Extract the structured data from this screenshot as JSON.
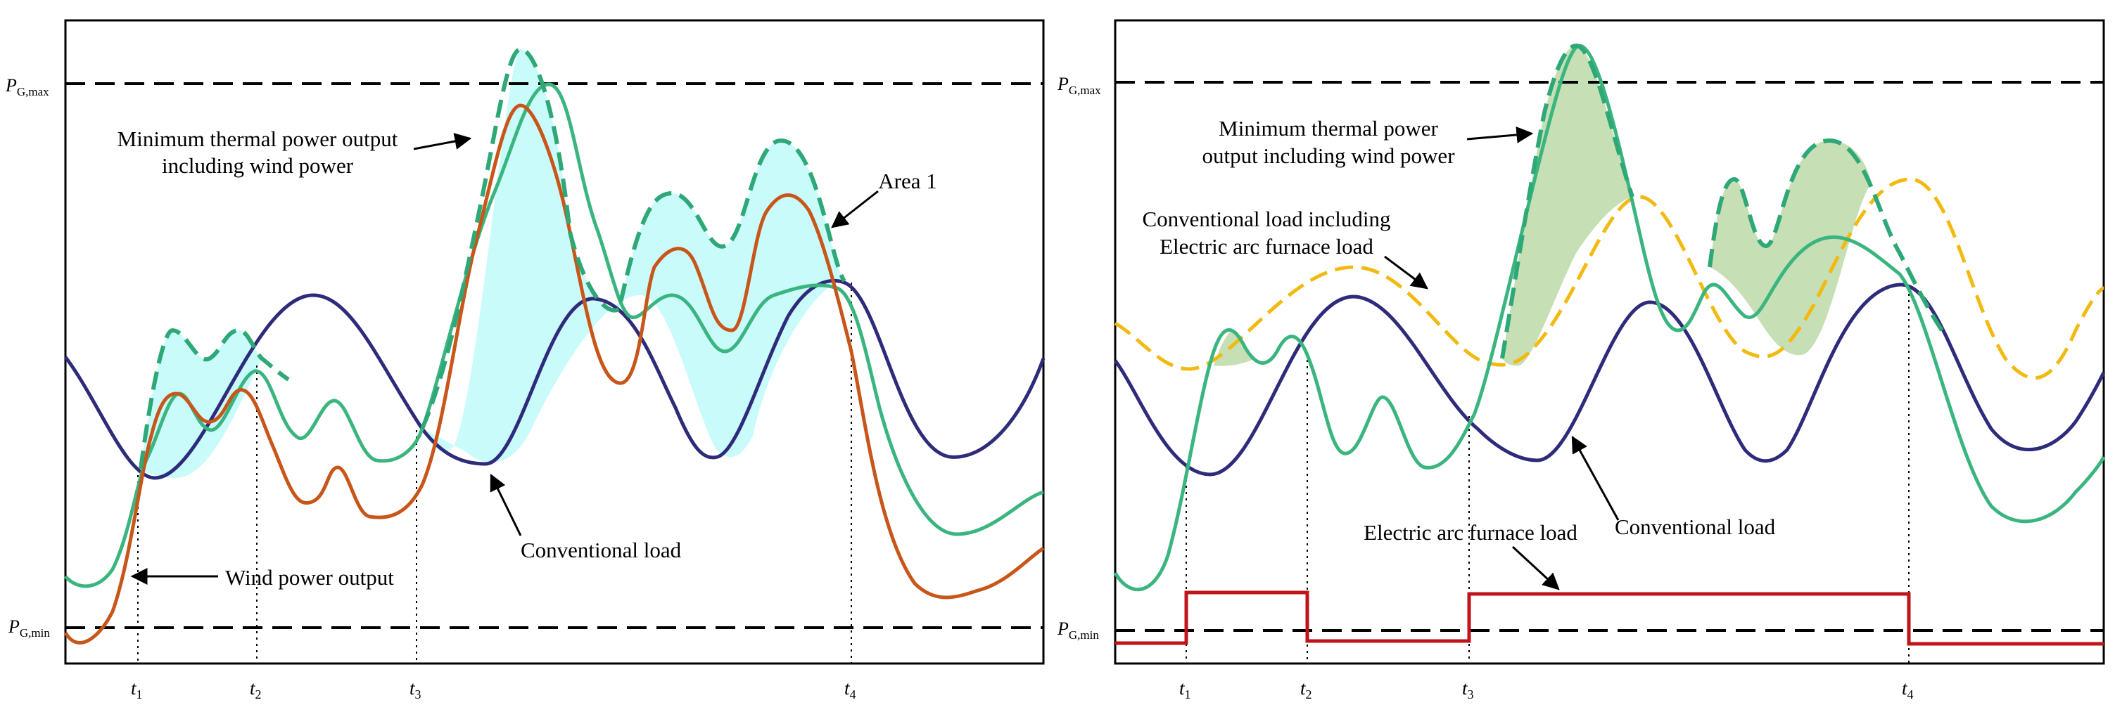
{
  "left_panel": {
    "pmax_label": {
      "main": "P",
      "sub": "G,max"
    },
    "pmin_label": {
      "main": "P",
      "sub": "G,min"
    },
    "annotations": {
      "min_thermal_line1": "Minimum thermal power output",
      "min_thermal_line2": "including wind power",
      "area1": "Area 1",
      "wind_output": "Wind power output",
      "conventional_load": "Conventional load"
    },
    "ticks": [
      {
        "main": "t",
        "sub": "1"
      },
      {
        "main": "t",
        "sub": "2"
      },
      {
        "main": "t",
        "sub": "3"
      },
      {
        "main": "t",
        "sub": "4"
      }
    ]
  },
  "right_panel": {
    "pmax_label": {
      "main": "P",
      "sub": "G,max"
    },
    "pmin_label": {
      "main": "P",
      "sub": "G,min"
    },
    "annotations": {
      "min_thermal_line1": "Minimum thermal power",
      "min_thermal_line2": "output including wind power",
      "conv_eaf_line1": "Conventional load including",
      "conv_eaf_line2": "Electric arc furnace load",
      "eaf_load": "Electric arc furnace load",
      "conventional_load": "Conventional load"
    },
    "ticks": [
      {
        "main": "t",
        "sub": "1"
      },
      {
        "main": "t",
        "sub": "2"
      },
      {
        "main": "t",
        "sub": "3"
      },
      {
        "main": "t",
        "sub": "4"
      }
    ]
  },
  "colors": {
    "frame": "#000000",
    "conventional_load": "#2e2b7a",
    "wind_output": "#3bb57f",
    "thermal_min_dashed": "#2ea877",
    "thermal_solid": "#c8561a",
    "eaf_load": "#c0141a",
    "conv_eaf_dashed": "#f2b90f",
    "area_left_fill": "#c9fbfb",
    "area_right_fill": "#c7dfb4"
  }
}
